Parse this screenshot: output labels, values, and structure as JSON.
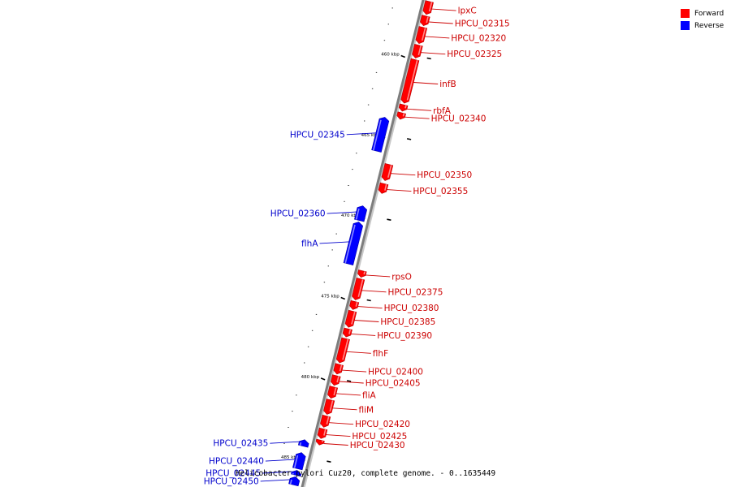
{
  "colors": {
    "forward": "#ff0000",
    "reverse": "#0000ff",
    "forward_label": "#cc0000",
    "reverse_label": "#0000cc"
  },
  "legend": [
    {
      "label": "Forward",
      "color": "#ff0000"
    },
    {
      "label": "Reverse",
      "color": "#0000ff"
    }
  ],
  "caption": "Helicobacter pylori Cuz20, complete genome. - 0..1635449",
  "axis": {
    "start_kbp": 456.5,
    "end_kbp": 486.7,
    "major_ticks": [
      {
        "kbp": 460,
        "label": "460 kbp"
      },
      {
        "kbp": 465,
        "label": "465 kbp"
      },
      {
        "kbp": 470,
        "label": "470 kbp"
      },
      {
        "kbp": 475,
        "label": "475 kbp"
      },
      {
        "kbp": 480,
        "label": "480 kbp"
      },
      {
        "kbp": 485,
        "label": "485 kbp"
      }
    ]
  },
  "genes": [
    {
      "name": "lpxC",
      "strand": "forward",
      "start_kbp": 456.5,
      "end_kbp": 457.3
    },
    {
      "name": "HPCU_02315",
      "strand": "forward",
      "start_kbp": 457.4,
      "end_kbp": 458.0
    },
    {
      "name": "HPCU_02320",
      "strand": "forward",
      "start_kbp": 458.1,
      "end_kbp": 459.1
    },
    {
      "name": "HPCU_02325",
      "strand": "forward",
      "start_kbp": 459.2,
      "end_kbp": 460.0
    },
    {
      "name": "infB",
      "strand": "forward",
      "start_kbp": 460.1,
      "end_kbp": 462.8
    },
    {
      "name": "rbfA",
      "strand": "forward",
      "start_kbp": 462.9,
      "end_kbp": 463.3
    },
    {
      "name": "HPCU_02340",
      "strand": "forward",
      "start_kbp": 463.4,
      "end_kbp": 463.8
    },
    {
      "name": "HPCU_02345",
      "strand": "reverse",
      "start_kbp": 463.9,
      "end_kbp": 466.0
    },
    {
      "name": "HPCU_02350",
      "strand": "forward",
      "start_kbp": 466.6,
      "end_kbp": 467.6
    },
    {
      "name": "HPCU_02355",
      "strand": "forward",
      "start_kbp": 467.8,
      "end_kbp": 468.4
    },
    {
      "name": "HPCU_02360",
      "strand": "reverse",
      "start_kbp": 469.4,
      "end_kbp": 470.3
    },
    {
      "name": "flhA",
      "strand": "reverse",
      "start_kbp": 470.4,
      "end_kbp": 473.0
    },
    {
      "name": "rpsO",
      "strand": "forward",
      "start_kbp": 473.2,
      "end_kbp": 473.6
    },
    {
      "name": "HPCU_02375",
      "strand": "forward",
      "start_kbp": 473.7,
      "end_kbp": 475.0
    },
    {
      "name": "HPCU_02380",
      "strand": "forward",
      "start_kbp": 475.1,
      "end_kbp": 475.6
    },
    {
      "name": "HPCU_02385",
      "strand": "forward",
      "start_kbp": 475.7,
      "end_kbp": 476.7
    },
    {
      "name": "HPCU_02390",
      "strand": "forward",
      "start_kbp": 476.8,
      "end_kbp": 477.3
    },
    {
      "name": "flhF",
      "strand": "forward",
      "start_kbp": 477.4,
      "end_kbp": 478.9
    },
    {
      "name": "HPCU_02400",
      "strand": "forward",
      "start_kbp": 479.0,
      "end_kbp": 479.6
    },
    {
      "name": "HPCU_02405",
      "strand": "forward",
      "start_kbp": 479.7,
      "end_kbp": 480.3
    },
    {
      "name": "fliA",
      "strand": "forward",
      "start_kbp": 480.4,
      "end_kbp": 481.1
    },
    {
      "name": "fliM",
      "strand": "forward",
      "start_kbp": 481.2,
      "end_kbp": 482.1
    },
    {
      "name": "HPCU_02420",
      "strand": "forward",
      "start_kbp": 482.2,
      "end_kbp": 482.9
    },
    {
      "name": "HPCU_02425",
      "strand": "forward",
      "start_kbp": 483.0,
      "end_kbp": 483.6
    },
    {
      "name": "HPCU_02430",
      "strand": "forward",
      "start_kbp": 483.7,
      "end_kbp": 484.0
    },
    {
      "name": "HPCU_02435",
      "strand": "reverse",
      "start_kbp": 483.9,
      "end_kbp": 484.3
    },
    {
      "name": "HPCU_02440",
      "strand": "reverse",
      "start_kbp": 484.7,
      "end_kbp": 485.7
    },
    {
      "name": "HPCU_02445",
      "strand": "reverse",
      "start_kbp": 485.8,
      "end_kbp": 486.1
    },
    {
      "name": "HPCU_02450",
      "strand": "reverse",
      "start_kbp": 486.2,
      "end_kbp": 486.7
    }
  ]
}
